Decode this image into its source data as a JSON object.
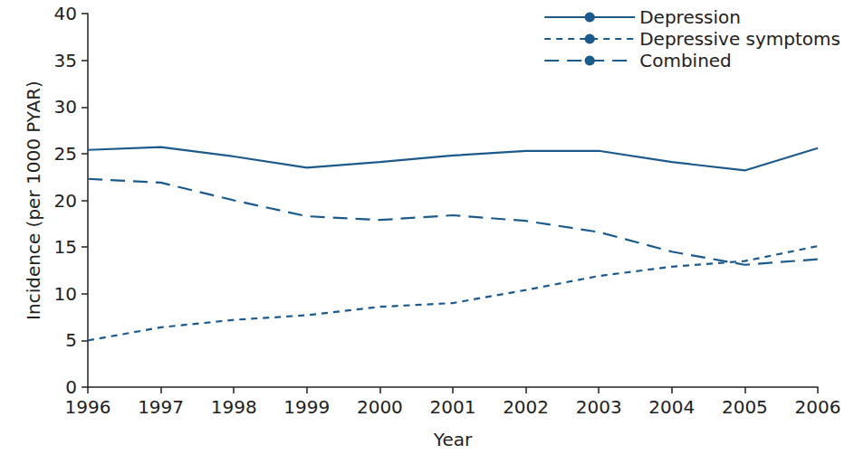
{
  "chart_data": {
    "type": "line",
    "x_label": "Year",
    "y_label": "Incidence (per 1000 PYAR)",
    "categories": [
      "1996",
      "1997",
      "1998",
      "1999",
      "2000",
      "2001",
      "2002",
      "2003",
      "2004",
      "2005",
      "2006"
    ],
    "series": [
      {
        "name": "Depression",
        "color": "#1d5a8c",
        "line_style": "solid",
        "values": [
          25.4,
          25.7,
          24.7,
          23.5,
          24.1,
          24.8,
          25.3,
          25.3,
          24.1,
          23.2,
          25.6
        ]
      },
      {
        "name": "Depressive symptoms",
        "color": "#1d5a8c",
        "line_style": "dashed",
        "values": [
          5.0,
          6.4,
          7.2,
          7.7,
          8.6,
          9.0,
          10.4,
          11.9,
          12.9,
          13.5,
          15.1
        ]
      },
      {
        "name": "Combined",
        "color": "#1d5a8c",
        "line_style": "long_dashed",
        "values": [
          22.3,
          21.9,
          20.0,
          18.3,
          17.9,
          18.4,
          17.8,
          16.6,
          14.5,
          13.1,
          13.7
        ]
      }
    ],
    "ylim": [
      0,
      40
    ],
    "yticks": [
      0,
      5,
      10,
      15,
      20,
      25,
      30,
      35,
      40
    ],
    "grid": false,
    "legend": "upper right"
  }
}
